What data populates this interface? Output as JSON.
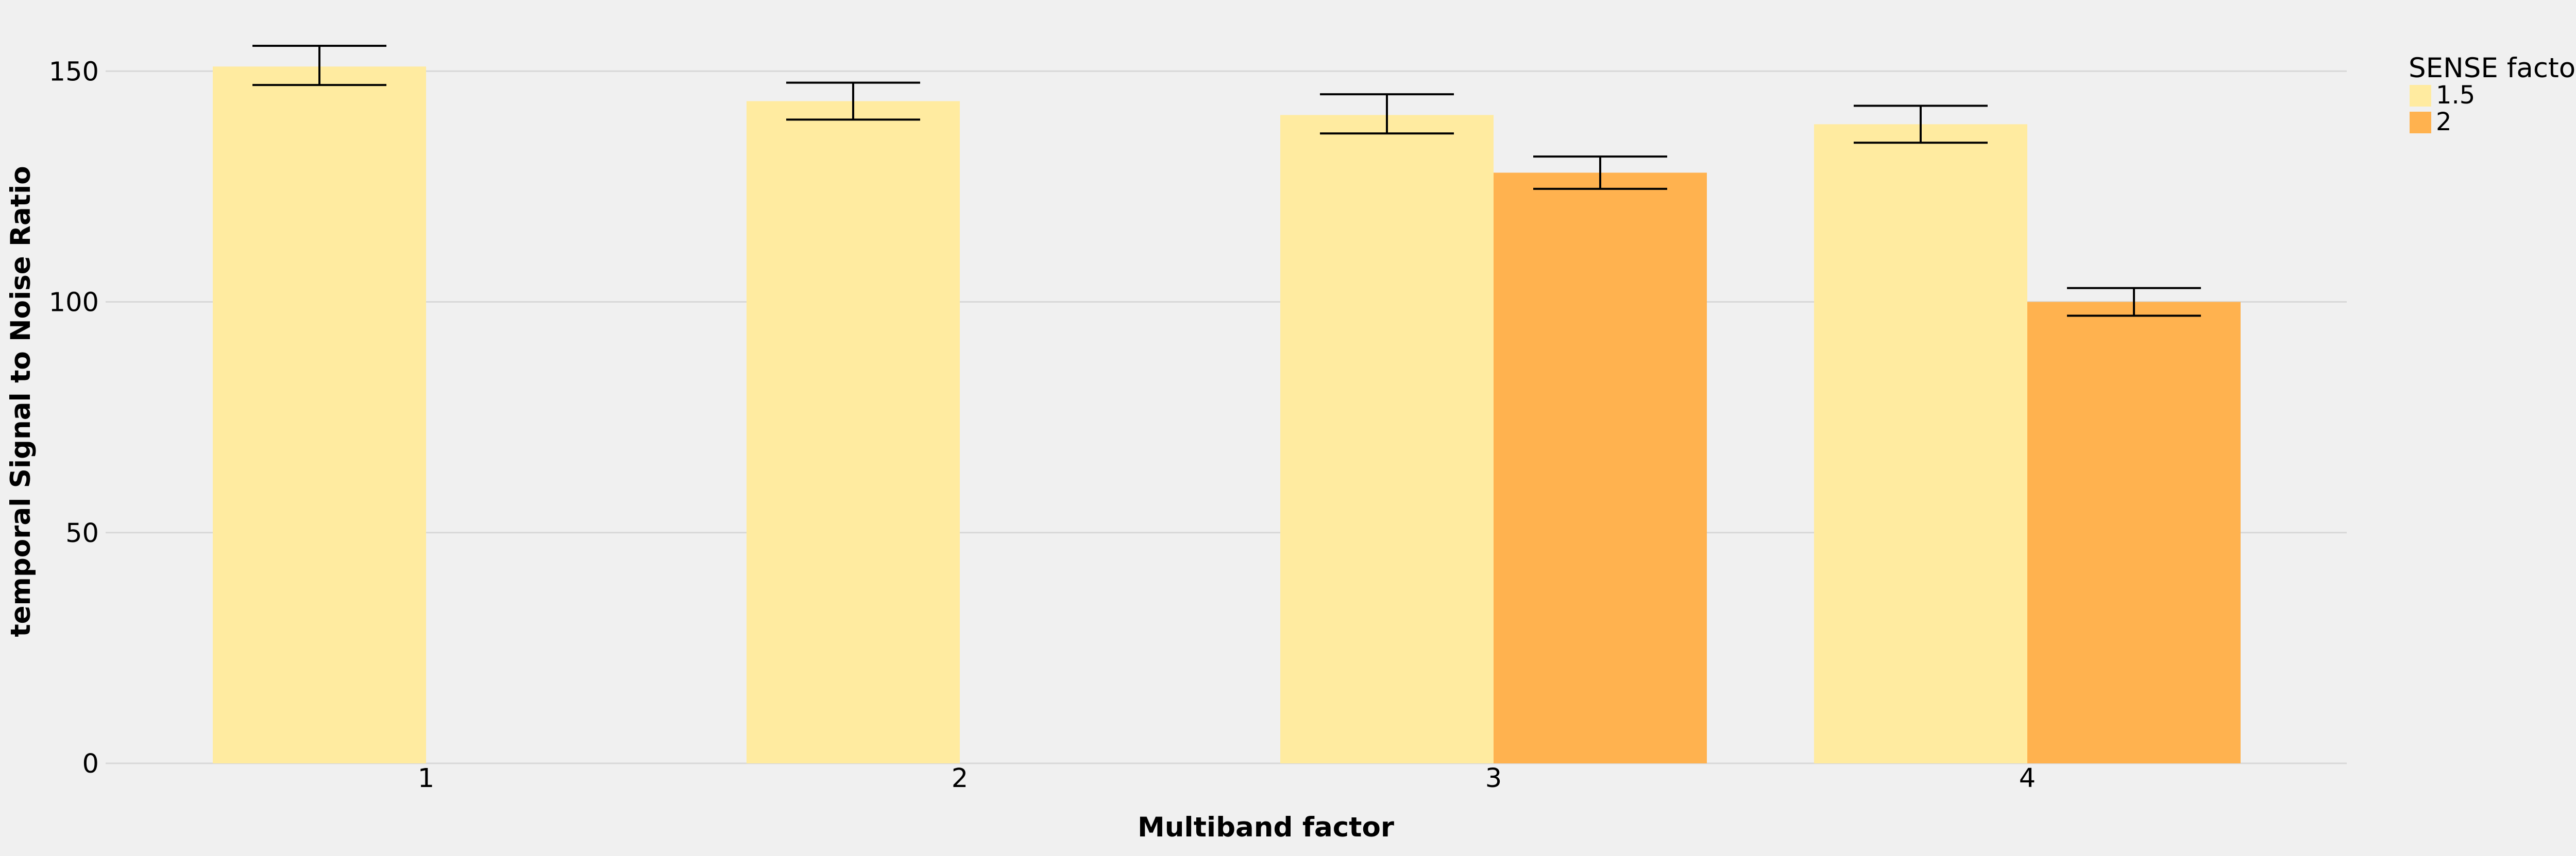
{
  "chart_data": {
    "type": "bar",
    "xlabel": "Multiband factor",
    "ylabel": "temporal Signal to Noise Ratio",
    "categories": [
      "1",
      "2",
      "3",
      "4"
    ],
    "ylim": [
      0,
      163
    ],
    "yticks": [
      0,
      50,
      100,
      150
    ],
    "grid": "horizontal",
    "legend": {
      "title": "SENSE factor",
      "position": "top-right"
    },
    "series": [
      {
        "name": "1.5",
        "color": "#ffeba0",
        "values": [
          151,
          143.5,
          140.5,
          138.5
        ],
        "err_low": [
          147,
          139.5,
          136.5,
          134.5
        ],
        "err_high": [
          155.5,
          147.5,
          145,
          142.5
        ]
      },
      {
        "name": "2",
        "color": "#ffb24f",
        "values": [
          null,
          null,
          128,
          100
        ],
        "err_low": [
          null,
          null,
          124.5,
          97
        ],
        "err_high": [
          null,
          null,
          131.5,
          103
        ]
      }
    ],
    "colors": {
      "background": "#f0f0f0",
      "grid": "#d8d8d8",
      "errorbar": "#000000",
      "text": "#000000"
    }
  }
}
